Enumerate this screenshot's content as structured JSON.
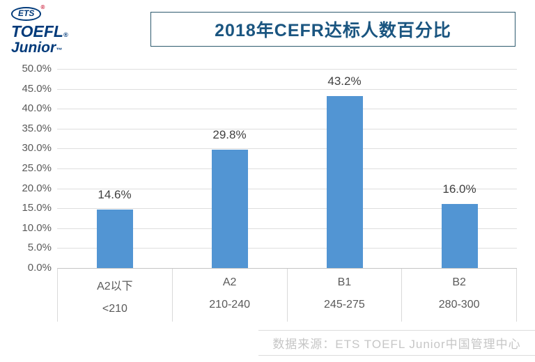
{
  "logo": {
    "ets": "ETS",
    "ets_mark": "®",
    "line1": "TOEFL",
    "line1_mark": "®",
    "line2": "Junior",
    "line2_mark": "™",
    "color": "#003a7a",
    "mark_color": "#c8102e"
  },
  "title_box": {
    "border_color": "#2d5a6e"
  },
  "chart_data": {
    "type": "bar",
    "title": "2018年CEFR达标人数百分比",
    "categories": [
      "A2以下",
      "A2",
      "B1",
      "B2"
    ],
    "score_ranges": [
      "<210",
      "210-240",
      "245-275",
      "280-300"
    ],
    "values": [
      14.6,
      29.8,
      43.2,
      16.0
    ],
    "value_labels": [
      "14.6%",
      "29.8%",
      "43.2%",
      "16.0%"
    ],
    "xlabel": "",
    "ylabel": "",
    "ylim": [
      0,
      50
    ],
    "ytick_step": 5,
    "ytick_labels": [
      "50.0%",
      "45.0%",
      "40.0%",
      "35.0%",
      "30.0%",
      "25.0%",
      "20.0%",
      "15.0%",
      "10.0%",
      "5.0%",
      "0.0%"
    ],
    "grid": true,
    "legend": false,
    "bar_color": "#5295d3",
    "gridline_color": "#dedede",
    "axis_label_color": "#595959",
    "value_label_color": "#3f3f3f",
    "title_color": "#1a5580"
  },
  "footer": {
    "source": "数据来源：ETS TOEFL Junior中国管理中心",
    "text_color": "#c6c6c6"
  }
}
